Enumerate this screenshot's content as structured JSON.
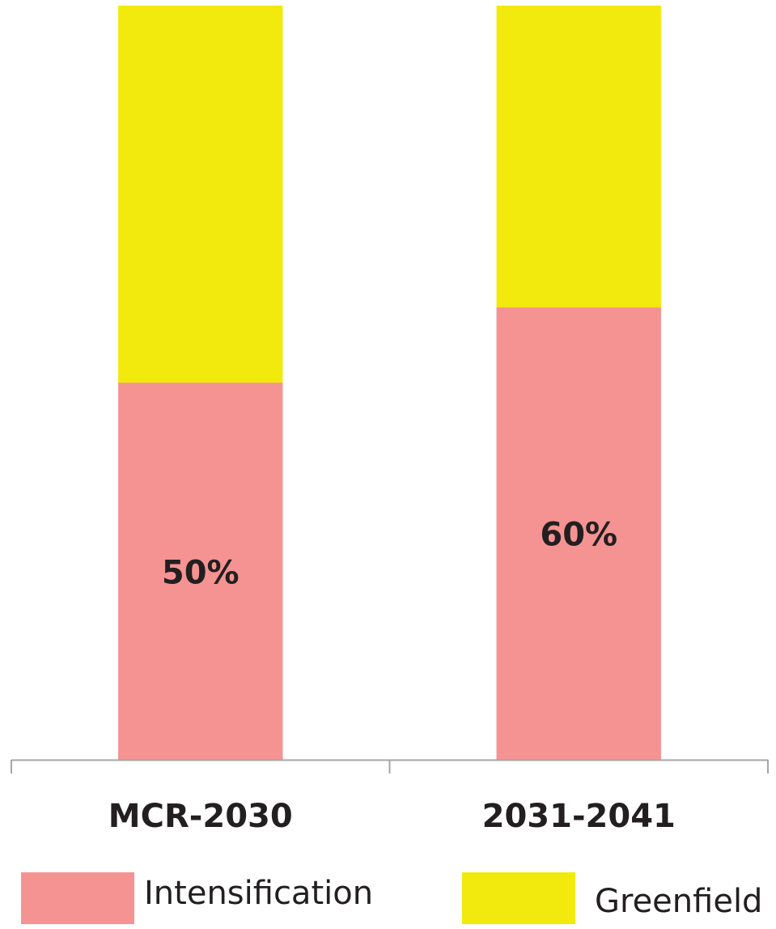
{
  "chart_data": {
    "type": "stacked_bar",
    "categories": [
      "MCR-2030",
      "2031-2041"
    ],
    "series": [
      {
        "name": "Intensification",
        "color": "#f59393",
        "values": [
          50,
          60
        ],
        "value_labels": [
          "50%",
          "60%"
        ]
      },
      {
        "name": "Greenfield",
        "color": "#f2ea0c",
        "values": [
          50,
          40
        ]
      }
    ],
    "ylim": [
      0,
      100
    ]
  }
}
